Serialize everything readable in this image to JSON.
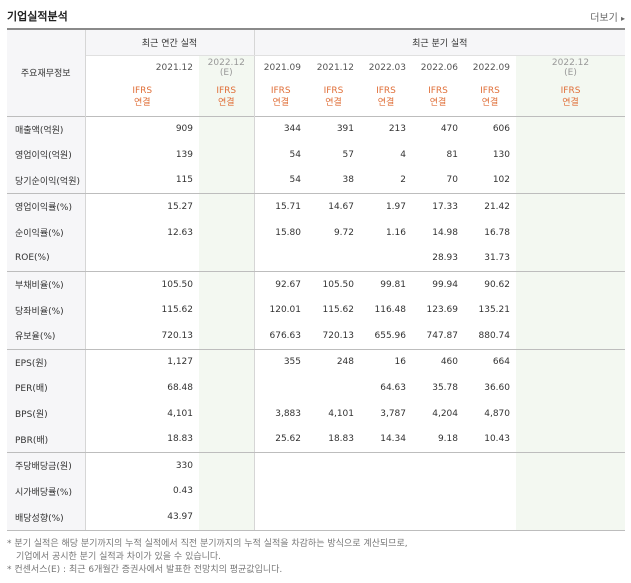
{
  "header": {
    "title": "기업실적분석",
    "more_label": "더보기",
    "more_arrow": "▸"
  },
  "table": {
    "row_header_title": "주요재무정보",
    "annual_group": "최근 연간 실적",
    "quarter_group": "최근 분기 실적",
    "periods": [
      {
        "label": "2021.12",
        "estimate": false,
        "sub": ""
      },
      {
        "label": "2022.12",
        "estimate": true,
        "sub": "(E)"
      },
      {
        "label": "2021.09",
        "estimate": false,
        "sub": ""
      },
      {
        "label": "2021.12",
        "estimate": false,
        "sub": ""
      },
      {
        "label": "2022.03",
        "estimate": false,
        "sub": ""
      },
      {
        "label": "2022.06",
        "estimate": false,
        "sub": ""
      },
      {
        "label": "2022.09",
        "estimate": false,
        "sub": ""
      },
      {
        "label": "2022.12",
        "estimate": true,
        "sub": "(E)"
      }
    ],
    "standard_line1": "IFRS",
    "standard_line2": "연결",
    "rows": [
      {
        "name": "매출액(억원)",
        "values": [
          "909",
          "",
          "344",
          "391",
          "213",
          "470",
          "606",
          ""
        ]
      },
      {
        "name": "영업이익(억원)",
        "values": [
          "139",
          "",
          "54",
          "57",
          "4",
          "81",
          "130",
          ""
        ]
      },
      {
        "name": "당기순이익(억원)",
        "values": [
          "115",
          "",
          "54",
          "38",
          "2",
          "70",
          "102",
          ""
        ]
      },
      {
        "name": "영업이익률(%)",
        "values": [
          "15.27",
          "",
          "15.71",
          "14.67",
          "1.97",
          "17.33",
          "21.42",
          ""
        ]
      },
      {
        "name": "순이익률(%)",
        "values": [
          "12.63",
          "",
          "15.80",
          "9.72",
          "1.16",
          "14.98",
          "16.78",
          ""
        ]
      },
      {
        "name": "ROE(%)",
        "values": [
          "",
          "",
          "",
          "",
          "",
          "28.93",
          "31.73",
          ""
        ]
      },
      {
        "name": "부채비율(%)",
        "values": [
          "105.50",
          "",
          "92.67",
          "105.50",
          "99.81",
          "99.94",
          "90.62",
          ""
        ]
      },
      {
        "name": "당좌비율(%)",
        "values": [
          "115.62",
          "",
          "120.01",
          "115.62",
          "116.48",
          "123.69",
          "135.21",
          ""
        ]
      },
      {
        "name": "유보율(%)",
        "values": [
          "720.13",
          "",
          "676.63",
          "720.13",
          "655.96",
          "747.87",
          "880.74",
          ""
        ]
      },
      {
        "name": "EPS(원)",
        "values": [
          "1,127",
          "",
          "355",
          "248",
          "16",
          "460",
          "664",
          ""
        ]
      },
      {
        "name": "PER(배)",
        "values": [
          "68.48",
          "",
          "",
          "",
          "64.63",
          "35.78",
          "36.60",
          ""
        ]
      },
      {
        "name": "BPS(원)",
        "values": [
          "4,101",
          "",
          "3,883",
          "4,101",
          "3,787",
          "4,204",
          "4,870",
          ""
        ]
      },
      {
        "name": "PBR(배)",
        "values": [
          "18.83",
          "",
          "25.62",
          "18.83",
          "14.34",
          "9.18",
          "10.43",
          ""
        ]
      },
      {
        "name": "주당배당금(원)",
        "values": [
          "330",
          "",
          "",
          "",
          "",
          "",
          "",
          ""
        ]
      },
      {
        "name": "시가배당률(%)",
        "values": [
          "0.43",
          "",
          "",
          "",
          "",
          "",
          "",
          ""
        ]
      },
      {
        "name": "배당성향(%)",
        "values": [
          "43.97",
          "",
          "",
          "",
          "",
          "",
          "",
          ""
        ]
      }
    ]
  },
  "footnotes": {
    "line1": "* 분기 실적은 해당 분기까지의 누적 실적에서 직전 분기까지의 누적 실적을 차감하는 방식으로 계산되므로,",
    "line2": "기업에서 공시한 분기 실적과 차이가 있을 수 있습니다.",
    "line3": "* 컨센서스(E) : 최근 6개월간 증권사에서 발표한 전망치의 평균값입니다."
  },
  "colors": {
    "ifrs_text": "#e0703a",
    "estimate_bg": "#f3f8f1",
    "header_bg": "#f6f6f8"
  }
}
